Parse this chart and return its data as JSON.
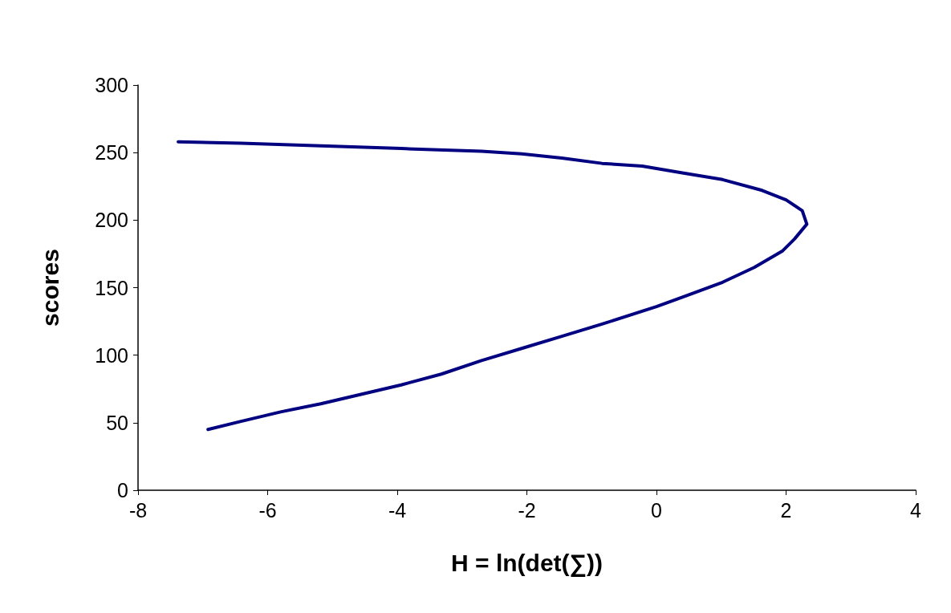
{
  "chart_data": {
    "type": "line",
    "xlabel": "H = ln(det(∑))",
    "ylabel": "scores",
    "x": [
      -7.38,
      -6.41,
      -5.18,
      -3.94,
      -2.7,
      -2.08,
      -1.46,
      -0.84,
      -0.22,
      0.4,
      1.02,
      1.63,
      2.0,
      2.25,
      2.32,
      2.13,
      1.94,
      1.51,
      1.02,
      0.4,
      0,
      -0.84,
      -1.46,
      -2.08,
      -2.7,
      -3.32,
      -3.94,
      -4.56,
      -5.18,
      -5.8,
      -6.41,
      -6.92
    ],
    "series": [
      {
        "color": "#000080",
        "values": [
          258,
          257,
          255,
          253,
          251,
          249,
          246,
          242,
          240,
          235,
          230,
          222,
          215,
          207,
          197,
          186,
          177,
          165,
          154,
          143,
          136,
          123,
          114,
          105,
          96,
          86,
          78,
          71,
          64,
          58,
          51,
          45
        ]
      }
    ],
    "xlim": [
      -8,
      4
    ],
    "xticks": [
      -8,
      -6,
      -4,
      -2,
      0,
      2,
      4
    ],
    "ylim": [
      0,
      300
    ],
    "yticks": [
      0,
      50,
      100,
      150,
      200,
      250,
      300
    ],
    "grid": false,
    "marker": "none",
    "line_style": "solid"
  }
}
